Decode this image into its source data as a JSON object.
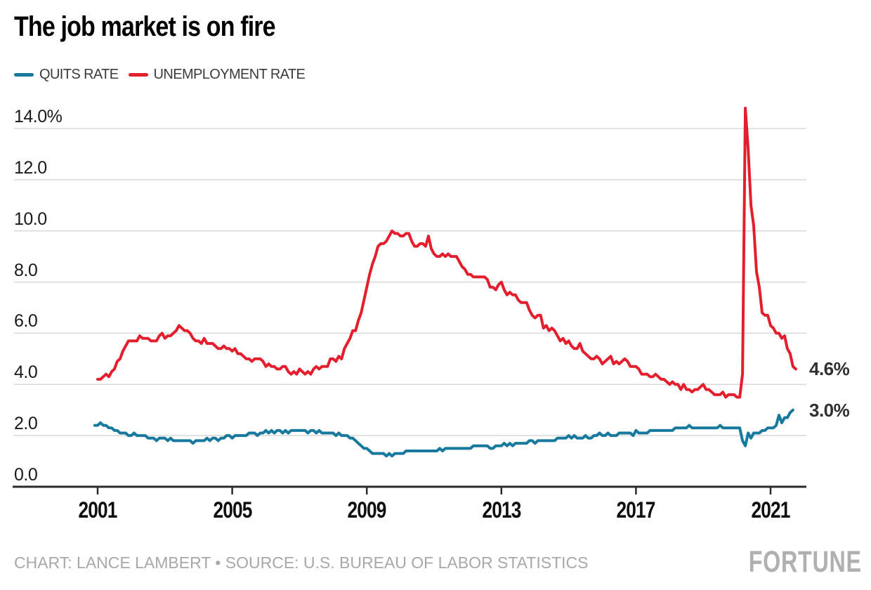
{
  "header": {
    "title": "The job market is on fire"
  },
  "legend": [
    {
      "label": "QUITS RATE",
      "color": "#17799e"
    },
    {
      "label": "UNEMPLOYMENT RATE",
      "color": "#e41f2d"
    }
  ],
  "footer": {
    "credit": "CHART: LANCE LAMBERT • SOURCE: U.S. BUREAU OF LABOR STATISTICS",
    "brand": "FORTUNE"
  },
  "chart_data": {
    "type": "line",
    "title": "The job market is on fire",
    "unit": "%",
    "grid": true,
    "legend_position": "top-left",
    "x_axis": {
      "tick_labels": [
        "2001",
        "2005",
        "2009",
        "2013",
        "2017",
        "2021"
      ],
      "tick_years": [
        2001,
        2005,
        2009,
        2013,
        2017,
        2021
      ],
      "range_years": [
        2000.9,
        2021.9
      ]
    },
    "y_axis": {
      "tick_labels": [
        "14.0%",
        "12.0",
        "10.0",
        "8.0",
        "6.0",
        "4.0",
        "2.0",
        "0.0"
      ],
      "tick_values": [
        14,
        12,
        10,
        8,
        6,
        4,
        2,
        0
      ],
      "range": [
        0,
        14.8
      ]
    },
    "colors": {
      "grid": "#d8d8d8",
      "axis": "#2b2b2b"
    },
    "series": [
      {
        "name": "QUITS RATE",
        "color": "#17799e",
        "frequency": "monthly",
        "start_year": 2000,
        "start_month": 12,
        "end_label": "3.0%",
        "values": [
          2.4,
          2.4,
          2.5,
          2.4,
          2.4,
          2.3,
          2.3,
          2.2,
          2.2,
          2.1,
          2.1,
          2.1,
          2.0,
          2.0,
          2.1,
          2.0,
          2.0,
          2.0,
          2.0,
          1.9,
          1.9,
          1.9,
          1.8,
          1.9,
          1.9,
          1.9,
          1.8,
          1.9,
          1.8,
          1.8,
          1.8,
          1.8,
          1.8,
          1.8,
          1.8,
          1.7,
          1.8,
          1.8,
          1.8,
          1.8,
          1.9,
          1.8,
          1.9,
          1.9,
          1.8,
          1.9,
          1.9,
          2.0,
          2.0,
          1.9,
          2.0,
          2.0,
          2.0,
          2.0,
          2.0,
          2.1,
          2.1,
          2.1,
          2.0,
          2.1,
          2.1,
          2.2,
          2.1,
          2.2,
          2.1,
          2.2,
          2.2,
          2.1,
          2.2,
          2.1,
          2.2,
          2.2,
          2.2,
          2.2,
          2.2,
          2.2,
          2.1,
          2.2,
          2.2,
          2.1,
          2.2,
          2.1,
          2.1,
          2.1,
          2.1,
          2.1,
          2.0,
          2.1,
          2.0,
          2.0,
          2.0,
          1.9,
          1.9,
          1.8,
          1.7,
          1.6,
          1.5,
          1.5,
          1.4,
          1.3,
          1.3,
          1.3,
          1.3,
          1.3,
          1.2,
          1.3,
          1.2,
          1.3,
          1.3,
          1.3,
          1.3,
          1.4,
          1.4,
          1.4,
          1.4,
          1.4,
          1.4,
          1.4,
          1.4,
          1.4,
          1.4,
          1.4,
          1.4,
          1.5,
          1.4,
          1.5,
          1.5,
          1.5,
          1.5,
          1.5,
          1.5,
          1.5,
          1.5,
          1.5,
          1.5,
          1.6,
          1.6,
          1.6,
          1.6,
          1.6,
          1.6,
          1.5,
          1.5,
          1.6,
          1.6,
          1.6,
          1.7,
          1.6,
          1.7,
          1.6,
          1.7,
          1.7,
          1.7,
          1.7,
          1.7,
          1.8,
          1.8,
          1.7,
          1.8,
          1.8,
          1.8,
          1.8,
          1.8,
          1.8,
          1.8,
          1.9,
          1.9,
          1.9,
          1.9,
          2.0,
          1.9,
          2.0,
          1.9,
          1.9,
          1.9,
          2.0,
          1.9,
          1.9,
          2.0,
          2.0,
          2.1,
          2.0,
          2.0,
          2.1,
          2.0,
          2.0,
          2.0,
          2.1,
          2.1,
          2.1,
          2.1,
          2.1,
          2.0,
          2.2,
          2.1,
          2.1,
          2.1,
          2.1,
          2.2,
          2.2,
          2.2,
          2.2,
          2.2,
          2.2,
          2.2,
          2.2,
          2.2,
          2.3,
          2.3,
          2.3,
          2.3,
          2.3,
          2.4,
          2.3,
          2.3,
          2.3,
          2.3,
          2.3,
          2.3,
          2.3,
          2.3,
          2.3,
          2.3,
          2.4,
          2.3,
          2.3,
          2.3,
          2.3,
          2.3,
          2.3,
          2.3,
          1.8,
          1.6,
          2.1,
          1.9,
          2.1,
          2.1,
          2.1,
          2.2,
          2.2,
          2.3,
          2.3,
          2.3,
          2.4,
          2.8,
          2.5,
          2.7,
          2.7,
          2.9,
          3.0
        ]
      },
      {
        "name": "UNEMPLOYMENT RATE",
        "color": "#e41f2d",
        "frequency": "monthly",
        "start_year": 2001,
        "start_month": 1,
        "end_label": "4.6%",
        "values": [
          4.2,
          4.2,
          4.3,
          4.4,
          4.3,
          4.5,
          4.6,
          4.9,
          5.0,
          5.3,
          5.5,
          5.7,
          5.7,
          5.7,
          5.7,
          5.9,
          5.8,
          5.8,
          5.8,
          5.7,
          5.7,
          5.7,
          5.9,
          6.0,
          5.8,
          5.9,
          5.9,
          6.0,
          6.1,
          6.3,
          6.2,
          6.1,
          6.1,
          6.0,
          5.8,
          5.7,
          5.7,
          5.6,
          5.8,
          5.6,
          5.6,
          5.6,
          5.5,
          5.4,
          5.4,
          5.5,
          5.4,
          5.4,
          5.3,
          5.4,
          5.2,
          5.2,
          5.1,
          5.0,
          5.0,
          4.9,
          5.0,
          5.0,
          5.0,
          4.9,
          4.7,
          4.8,
          4.7,
          4.7,
          4.6,
          4.6,
          4.7,
          4.7,
          4.5,
          4.4,
          4.5,
          4.4,
          4.6,
          4.5,
          4.4,
          4.5,
          4.4,
          4.6,
          4.7,
          4.6,
          4.7,
          4.7,
          4.7,
          5.0,
          5.0,
          4.9,
          5.1,
          5.0,
          5.4,
          5.6,
          5.8,
          6.1,
          6.1,
          6.5,
          6.8,
          7.3,
          7.8,
          8.3,
          8.7,
          9.0,
          9.4,
          9.5,
          9.5,
          9.6,
          9.8,
          10.0,
          9.9,
          9.9,
          9.8,
          9.8,
          9.9,
          9.9,
          9.6,
          9.4,
          9.4,
          9.5,
          9.5,
          9.4,
          9.8,
          9.3,
          9.1,
          9.0,
          9.0,
          9.1,
          9.0,
          9.1,
          9.0,
          9.0,
          9.0,
          8.8,
          8.6,
          8.5,
          8.3,
          8.3,
          8.2,
          8.2,
          8.2,
          8.2,
          8.2,
          8.1,
          7.8,
          7.8,
          7.7,
          7.9,
          8.0,
          7.7,
          7.5,
          7.6,
          7.5,
          7.5,
          7.3,
          7.2,
          7.2,
          7.2,
          6.9,
          6.7,
          6.6,
          6.7,
          6.7,
          6.2,
          6.3,
          6.1,
          6.2,
          6.1,
          5.9,
          5.7,
          5.8,
          5.6,
          5.7,
          5.5,
          5.4,
          5.4,
          5.6,
          5.3,
          5.2,
          5.1,
          5.0,
          5.0,
          5.1,
          5.0,
          4.8,
          4.9,
          5.0,
          5.1,
          4.8,
          4.9,
          4.8,
          4.9,
          5.0,
          4.9,
          4.7,
          4.7,
          4.7,
          4.6,
          4.4,
          4.4,
          4.4,
          4.3,
          4.3,
          4.4,
          4.3,
          4.2,
          4.2,
          4.1,
          4.0,
          4.1,
          4.0,
          4.0,
          3.8,
          4.0,
          3.8,
          3.8,
          3.7,
          3.8,
          3.8,
          3.9,
          4.0,
          3.8,
          3.8,
          3.7,
          3.6,
          3.6,
          3.6,
          3.7,
          3.5,
          3.6,
          3.6,
          3.6,
          3.5,
          3.5,
          4.4,
          14.8,
          13.2,
          11.0,
          10.2,
          8.4,
          7.8,
          6.8,
          6.7,
          6.7,
          6.3,
          6.2,
          6.0,
          6.0,
          5.8,
          5.9,
          5.4,
          5.2,
          4.7,
          4.6
        ]
      }
    ]
  }
}
